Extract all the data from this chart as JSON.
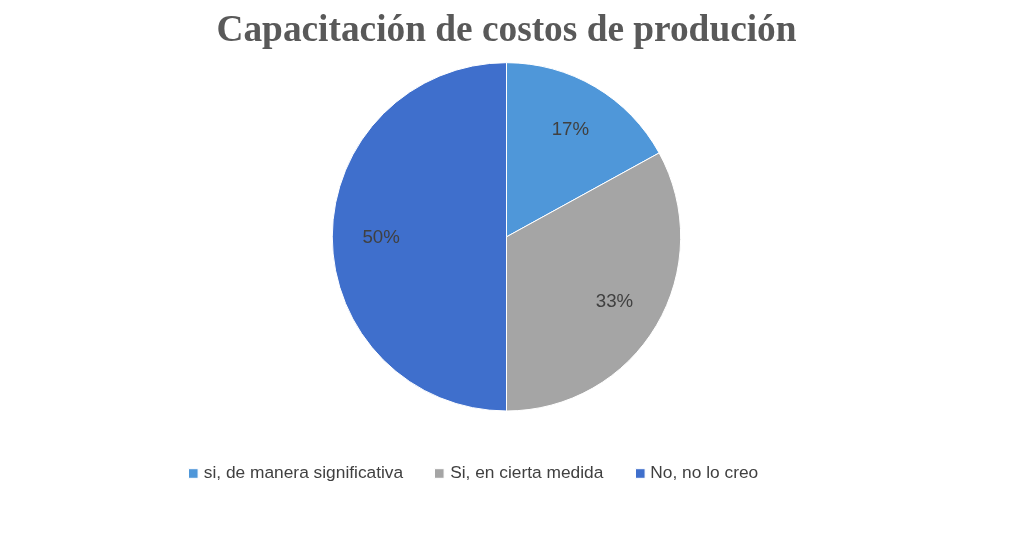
{
  "chart_data": {
    "type": "pie",
    "title": "Capacitación de costos de produción",
    "categories": [
      "si, de manera significativa",
      "Si, en cierta medida",
      "No, no lo creo",
      null
    ],
    "values": [
      17,
      33,
      50,
      0
    ],
    "colors": [
      "#4f97d9",
      "#a5a5a5",
      "#3f6fcc",
      "#264478"
    ],
    "value_labels": [
      "17%",
      "33%",
      "50%",
      null
    ],
    "legend": "bottom"
  }
}
